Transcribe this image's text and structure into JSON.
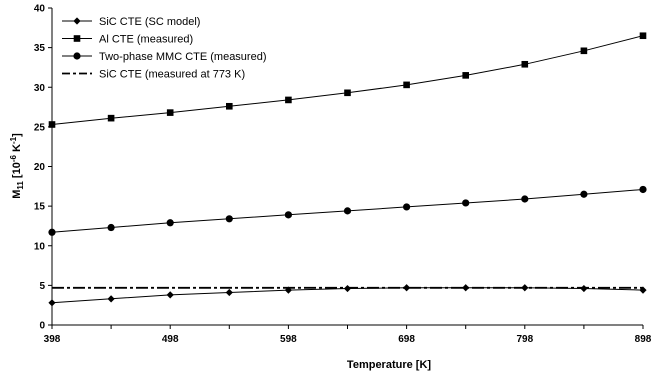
{
  "chart_data": {
    "type": "line",
    "xlabel": "Temperature [K]",
    "ylabel": {
      "base": "M",
      "sub": "11",
      "rest": " [10",
      "sup1": "-6",
      "mid": " K",
      "sup2": "-1",
      "end": "]"
    },
    "xlim": [
      398,
      898
    ],
    "ylim": [
      0,
      40
    ],
    "xticks": [
      "398",
      "498",
      "598",
      "698",
      "798",
      "898"
    ],
    "yticks": [
      "0",
      "5",
      "10",
      "15",
      "20",
      "25",
      "30",
      "35",
      "40"
    ],
    "grid": false,
    "legend_position": "top-left",
    "series": [
      {
        "name": "SiC CTE (SC model)",
        "marker": "diamond",
        "line": "solid",
        "x": [
          398,
          448,
          498,
          548,
          598,
          648,
          698,
          748,
          798,
          848,
          898
        ],
        "y": [
          2.8,
          3.3,
          3.8,
          4.1,
          4.4,
          4.6,
          4.7,
          4.7,
          4.7,
          4.6,
          4.4
        ]
      },
      {
        "name": "Al CTE (measured)",
        "marker": "square",
        "line": "solid",
        "x": [
          398,
          448,
          498,
          548,
          598,
          648,
          698,
          748,
          798,
          848,
          898
        ],
        "y": [
          25.3,
          26.1,
          26.8,
          27.6,
          28.4,
          29.3,
          30.3,
          31.5,
          32.9,
          34.6,
          36.5
        ]
      },
      {
        "name": "Two-phase MMC CTE (measured)",
        "marker": "circle",
        "line": "solid",
        "x": [
          398,
          448,
          498,
          548,
          598,
          648,
          698,
          748,
          798,
          848,
          898
        ],
        "y": [
          11.7,
          12.3,
          12.9,
          13.4,
          13.9,
          14.4,
          14.9,
          15.4,
          15.9,
          16.5,
          17.1
        ]
      },
      {
        "name": "SiC CTE (measured at 773 K)",
        "marker": "none",
        "line": "dash-dot",
        "x": [
          398,
          898
        ],
        "y": [
          4.7,
          4.7
        ]
      }
    ]
  }
}
